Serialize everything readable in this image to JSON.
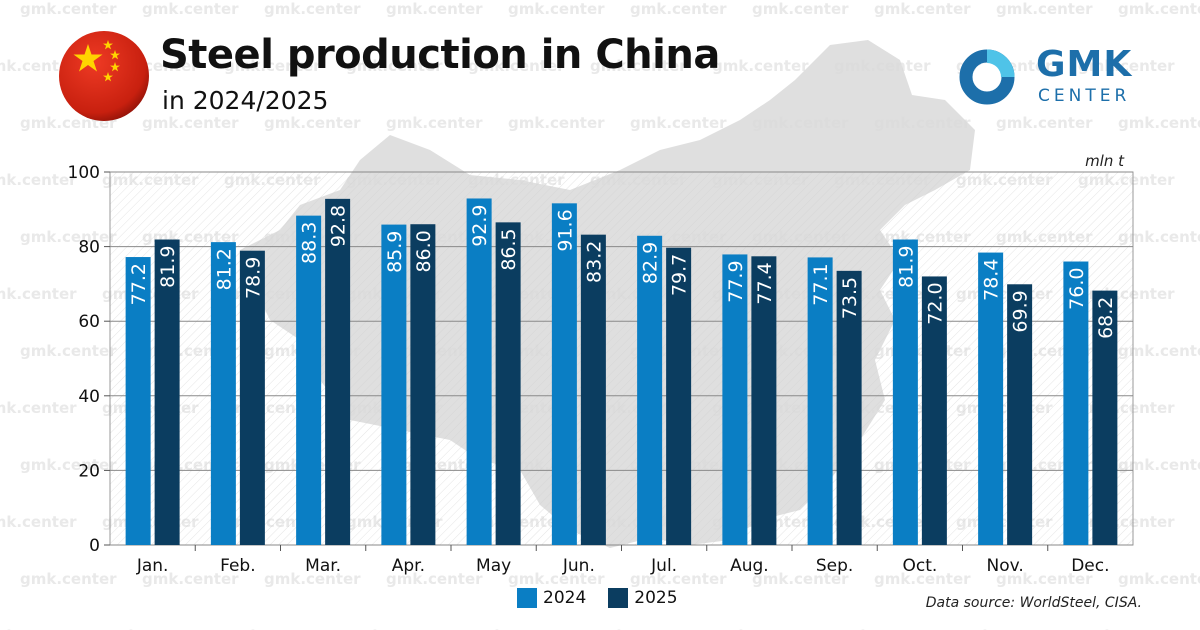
{
  "header": {
    "title": "Steel production in China",
    "subtitle": "in 2024/2025"
  },
  "logo": {
    "main": "GMK",
    "sub": "CENTER",
    "color": "#1d6faa"
  },
  "watermark": "gmk.center",
  "source": "Data source: WorldSteel, CISA.",
  "colors": {
    "series_2024": "#0a7ec4",
    "series_2025": "#0b3d60",
    "flag_red": "#d62718",
    "flag_star": "#ffd400"
  },
  "chart_data": {
    "type": "bar",
    "unit_label": "mln t",
    "categories": [
      "Jan.",
      "Feb.",
      "Mar.",
      "Apr.",
      "May",
      "Jun.",
      "Jul.",
      "Aug.",
      "Sep.",
      "Oct.",
      "Nov.",
      "Dec."
    ],
    "series": [
      {
        "name": "2024",
        "values": [
          77.2,
          81.2,
          88.3,
          85.9,
          92.9,
          91.6,
          82.9,
          77.9,
          77.1,
          81.9,
          78.4,
          76.0
        ]
      },
      {
        "name": "2025",
        "values": [
          81.9,
          78.9,
          92.8,
          86.0,
          86.5,
          83.2,
          79.7,
          77.4,
          73.5,
          72.0,
          69.9,
          68.2
        ]
      }
    ],
    "ylim": [
      0,
      100
    ],
    "yticks": [
      0,
      20,
      40,
      60,
      80,
      100
    ],
    "grid": true,
    "legend": "bottom-center",
    "data_labels": "inside-bar-vertical"
  }
}
